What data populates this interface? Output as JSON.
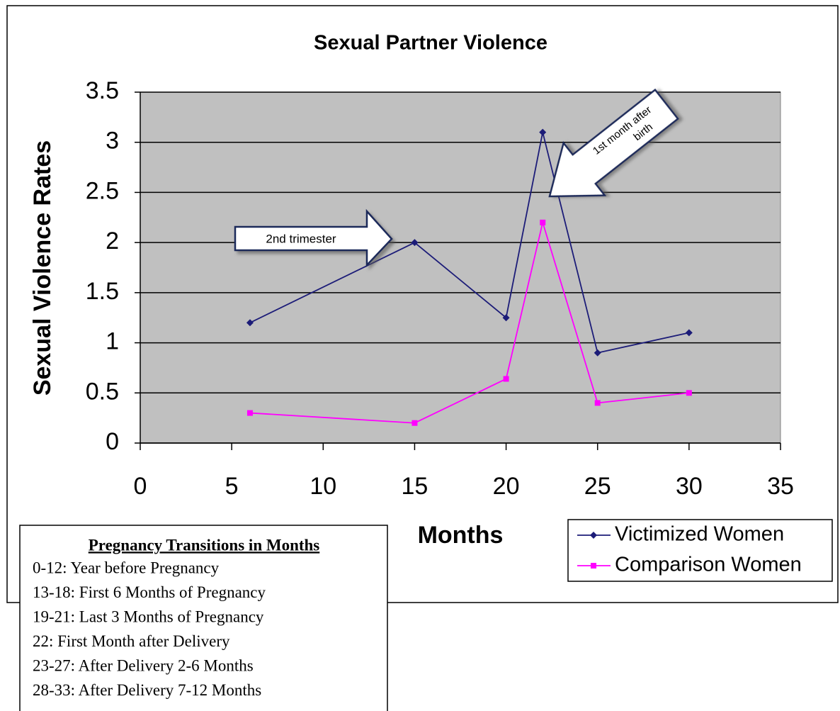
{
  "chart_data": {
    "type": "line",
    "title": "Sexual Partner Violence",
    "x_label": "Months",
    "y_label": "Sexual Violence Rates",
    "x": [
      6,
      15,
      20,
      22,
      25,
      30
    ],
    "series": [
      {
        "name": "Victimized Women",
        "color": "#1c1c78",
        "marker": "diamond",
        "values": [
          1.2,
          2.0,
          1.25,
          3.1,
          0.9,
          1.1
        ]
      },
      {
        "name": "Comparison Women",
        "color": "#ff00ff",
        "marker": "square",
        "values": [
          0.3,
          0.2,
          0.64,
          2.2,
          0.4,
          0.5
        ]
      }
    ],
    "xlim": [
      0,
      35
    ],
    "xticks": [
      0,
      5,
      10,
      15,
      20,
      25,
      30,
      35
    ],
    "ylim": [
      0,
      3.5
    ],
    "yticks": [
      0,
      0.5,
      1,
      1.5,
      2,
      2.5,
      3,
      3.5
    ],
    "grid": true,
    "legend": "lower right",
    "annotations": [
      {
        "lines": [
          "2nd trimester"
        ]
      },
      {
        "lines": [
          "1st month after",
          "birth"
        ]
      }
    ],
    "transitions_title": "Pregnancy Transitions in Months",
    "transitions": [
      "0-12: Year before Pregnancy",
      "13-18: First 6 Months of Pregnancy",
      "19-21: Last 3 Months of Pregnancy",
      "22: First Month after Delivery",
      "23-27: After Delivery 2-6 Months",
      "28-33: After Delivery 7-12 Months"
    ]
  }
}
